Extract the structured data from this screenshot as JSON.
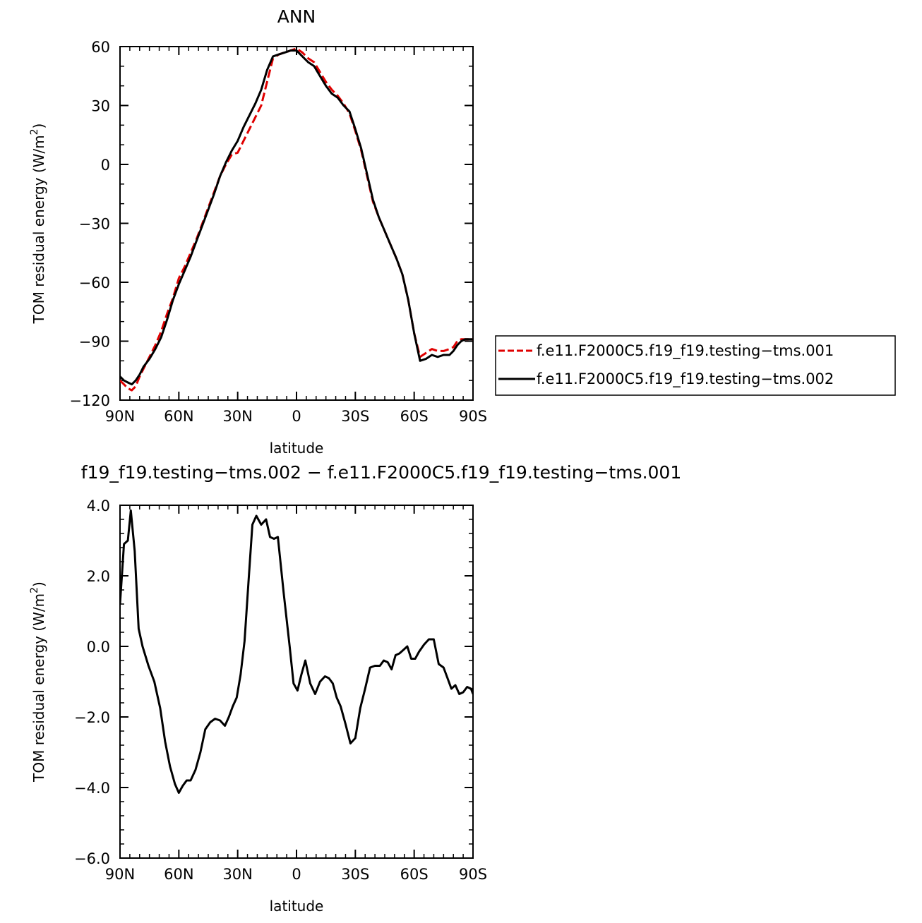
{
  "chart_data": [
    {
      "type": "line",
      "title": "ANN",
      "xlabel": "latitude",
      "ylabel": "TOM residual energy (W/m",
      "ylabel_sup": "2",
      "ylabel_close": ")",
      "xlim": [
        90,
        -90
      ],
      "ylim": [
        -120,
        60
      ],
      "x_ticks": [
        90,
        60,
        30,
        0,
        -30,
        -60,
        -90
      ],
      "x_tick_labels": [
        "90N",
        "60N",
        "30N",
        "0",
        "30S",
        "60S",
        "90S"
      ],
      "y_ticks": [
        -120,
        -90,
        -60,
        -30,
        0,
        30,
        60
      ],
      "y_tick_labels": [
        "−120",
        "−90",
        "−60",
        "−30",
        "0",
        "30",
        "60"
      ],
      "grid": false,
      "legend_position": "right",
      "series": [
        {
          "name": "f.e11.F2000C5.f19_f19.testing−tms.001",
          "color": "#e00000",
          "dash": "dashed",
          "x": [
            90,
            88,
            86,
            84,
            82,
            80,
            78,
            75,
            72,
            69,
            66,
            63,
            60,
            57,
            54,
            51,
            48,
            45,
            42,
            39,
            36,
            33,
            30,
            27,
            24,
            21,
            18,
            15,
            12,
            9,
            6,
            3,
            0,
            -3,
            -6,
            -9,
            -12,
            -15,
            -18,
            -21,
            -24,
            -27,
            -30,
            -33,
            -36,
            -39,
            -42,
            -45,
            -48,
            -51,
            -54,
            -57,
            -60,
            -63,
            -66,
            -69,
            -72,
            -75,
            -78,
            -80,
            -82,
            -84,
            -86,
            -88,
            -90
          ],
          "y": [
            -110,
            -112,
            -114,
            -115,
            -113,
            -108,
            -104,
            -98,
            -92,
            -85,
            -76,
            -68,
            -58,
            -52,
            -45,
            -38,
            -30,
            -22,
            -14,
            -6,
            0,
            5,
            6,
            12,
            18,
            24,
            30,
            42,
            54,
            56,
            57,
            58,
            59,
            57,
            54,
            52,
            47,
            42,
            38,
            35,
            31,
            26,
            17,
            7,
            -6,
            -19,
            -27,
            -34,
            -41,
            -48,
            -56,
            -69,
            -86,
            -98,
            -96,
            -94,
            -95,
            -95,
            -94,
            -93,
            -90,
            -89,
            -89,
            -89,
            -89
          ]
        },
        {
          "name": "f.e11.F2000C5.f19_f19.testing−tms.002",
          "color": "#000000",
          "dash": "solid",
          "x": [
            90,
            88,
            86,
            84,
            82,
            80,
            78,
            75,
            72,
            69,
            66,
            63,
            60,
            57,
            54,
            51,
            48,
            45,
            42,
            39,
            36,
            33,
            30,
            27,
            24,
            21,
            18,
            15,
            12,
            9,
            6,
            3,
            0,
            -3,
            -6,
            -9,
            -12,
            -15,
            -18,
            -21,
            -24,
            -27,
            -30,
            -33,
            -36,
            -39,
            -42,
            -45,
            -48,
            -51,
            -54,
            -57,
            -60,
            -63,
            -66,
            -69,
            -72,
            -75,
            -78,
            -80,
            -82,
            -84,
            -86,
            -88,
            -90
          ],
          "y": [
            -108,
            -110,
            -111,
            -112,
            -110,
            -107,
            -103,
            -99,
            -94,
            -88,
            -79,
            -69,
            -61,
            -54,
            -47,
            -39,
            -31,
            -23,
            -15,
            -6,
            1,
            7,
            12,
            19,
            25,
            31,
            38,
            48,
            55,
            56,
            57,
            58,
            58,
            55,
            52,
            50,
            45,
            40,
            36,
            34,
            30,
            27,
            18,
            8,
            -5,
            -18,
            -27,
            -34,
            -41,
            -48,
            -56,
            -69,
            -86,
            -100,
            -99,
            -97,
            -98,
            -97,
            -97,
            -95,
            -92,
            -90,
            -89,
            -89,
            -89
          ]
        }
      ]
    },
    {
      "type": "line",
      "title": "f19_f19.testing−tms.002 − f.e11.F2000C5.f19_f19.testing−tms.001",
      "xlabel": "latitude",
      "ylabel": "TOM residual energy (W/m",
      "ylabel_sup": "2",
      "ylabel_close": ")",
      "xlim": [
        90,
        -90
      ],
      "ylim": [
        -6,
        4
      ],
      "x_ticks": [
        90,
        60,
        30,
        0,
        -30,
        -60,
        -90
      ],
      "x_tick_labels": [
        "90N",
        "60N",
        "30N",
        "0",
        "30S",
        "60S",
        "90S"
      ],
      "y_ticks": [
        -6,
        -4,
        -2,
        0,
        2,
        4
      ],
      "y_tick_labels": [
        "−6.0",
        "−4.0",
        "−2.0",
        "0.0",
        "2.0",
        "4.0"
      ],
      "grid": false,
      "series": [
        {
          "color": "#000000",
          "dash": "solid",
          "x": [
            90,
            88,
            86,
            84.5,
            82.5,
            80.5,
            78.5,
            75.5,
            72.5,
            69.5,
            67,
            64.5,
            62,
            60,
            58,
            56,
            54,
            51.5,
            49,
            46.5,
            44,
            41.5,
            39,
            36.5,
            34.5,
            32.5,
            30.5,
            28.5,
            26.5,
            24.5,
            22.5,
            20.5,
            18,
            15.5,
            13.5,
            11.5,
            9.5,
            6.5,
            3.5,
            1.5,
            -0.5,
            -2.5,
            -4.5,
            -7,
            -9.5,
            -12,
            -14.5,
            -16.5,
            -18.5,
            -20.5,
            -22.5,
            -25,
            -27.5,
            -30,
            -32.5,
            -35,
            -37.5,
            -40,
            -42.5,
            -44.5,
            -46.5,
            -48.5,
            -50.5,
            -52.5,
            -54.5,
            -56.5,
            -58.5,
            -60.5,
            -62.5,
            -65,
            -67.5,
            -70,
            -72.5,
            -75,
            -77,
            -79,
            -81,
            -83,
            -85,
            -87,
            -89,
            -90
          ],
          "y": [
            1.2,
            2.9,
            3.0,
            3.85,
            2.7,
            0.5,
            0.0,
            -0.55,
            -1.0,
            -1.75,
            -2.7,
            -3.4,
            -3.9,
            -4.15,
            -3.95,
            -3.8,
            -3.8,
            -3.5,
            -3.0,
            -2.35,
            -2.15,
            -2.05,
            -2.1,
            -2.25,
            -2.0,
            -1.7,
            -1.45,
            -0.8,
            0.15,
            1.8,
            3.45,
            3.7,
            3.45,
            3.6,
            3.1,
            3.05,
            3.1,
            1.5,
            0.0,
            -1.05,
            -1.25,
            -0.8,
            -0.4,
            -1.05,
            -1.35,
            -1.0,
            -0.85,
            -0.9,
            -1.05,
            -1.45,
            -1.7,
            -2.2,
            -2.75,
            -2.6,
            -1.75,
            -1.2,
            -0.6,
            -0.55,
            -0.55,
            -0.4,
            -0.45,
            -0.65,
            -0.25,
            -0.2,
            -0.1,
            0.0,
            -0.35,
            -0.35,
            -0.15,
            0.05,
            0.2,
            0.2,
            -0.5,
            -0.6,
            -0.9,
            -1.2,
            -1.1,
            -1.35,
            -1.3,
            -1.15,
            -1.2,
            -1.35
          ]
        }
      ]
    }
  ]
}
